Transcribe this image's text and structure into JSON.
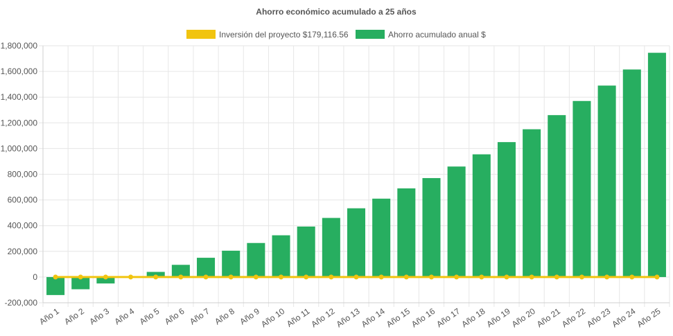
{
  "chart_data": {
    "type": "bar",
    "title": "Ahorro económico acumulado a 25 años",
    "xlabel": "",
    "ylabel": "",
    "ylim": [
      -200000,
      1800000
    ],
    "yticks": [
      -200000,
      0,
      200000,
      400000,
      600000,
      800000,
      1000000,
      1200000,
      1400000,
      1600000,
      1800000
    ],
    "ytick_labels": [
      "-200,000",
      "0",
      "200,000",
      "400,000",
      "600,000",
      "800,000",
      "1,000,000",
      "1,200,000",
      "1,400,000",
      "1,600,000",
      "1,800,000"
    ],
    "grid": true,
    "legend_position": "top",
    "categories": [
      "Año 1",
      "Año 2",
      "Año 3",
      "Año 4",
      "Año 5",
      "Año 6",
      "Año 7",
      "Año 8",
      "Año 9",
      "Año 10",
      "Año 11",
      "Año 12",
      "Año 13",
      "Año 14",
      "Año 15",
      "Año 16",
      "Año 17",
      "Año 18",
      "Año 19",
      "Año 20",
      "Año 21",
      "Año 22",
      "Año 23",
      "Año 24",
      "Año 25"
    ],
    "series": [
      {
        "name": "Inversión del proyecto $179,116.56",
        "type": "line",
        "color": "#f1c40f",
        "values": [
          0,
          0,
          0,
          0,
          0,
          0,
          0,
          0,
          0,
          0,
          0,
          0,
          0,
          0,
          0,
          0,
          0,
          0,
          0,
          0,
          0,
          0,
          0,
          0,
          0
        ]
      },
      {
        "name": "Ahorro acumulado anual $",
        "type": "bar",
        "color": "#27ae60",
        "values": [
          -140000,
          -95000,
          -50000,
          0,
          40000,
          95000,
          150000,
          205000,
          265000,
          325000,
          393000,
          460000,
          535000,
          610000,
          690000,
          770000,
          860000,
          955000,
          1050000,
          1150000,
          1260000,
          1370000,
          1490000,
          1615000,
          1745000
        ]
      }
    ]
  }
}
